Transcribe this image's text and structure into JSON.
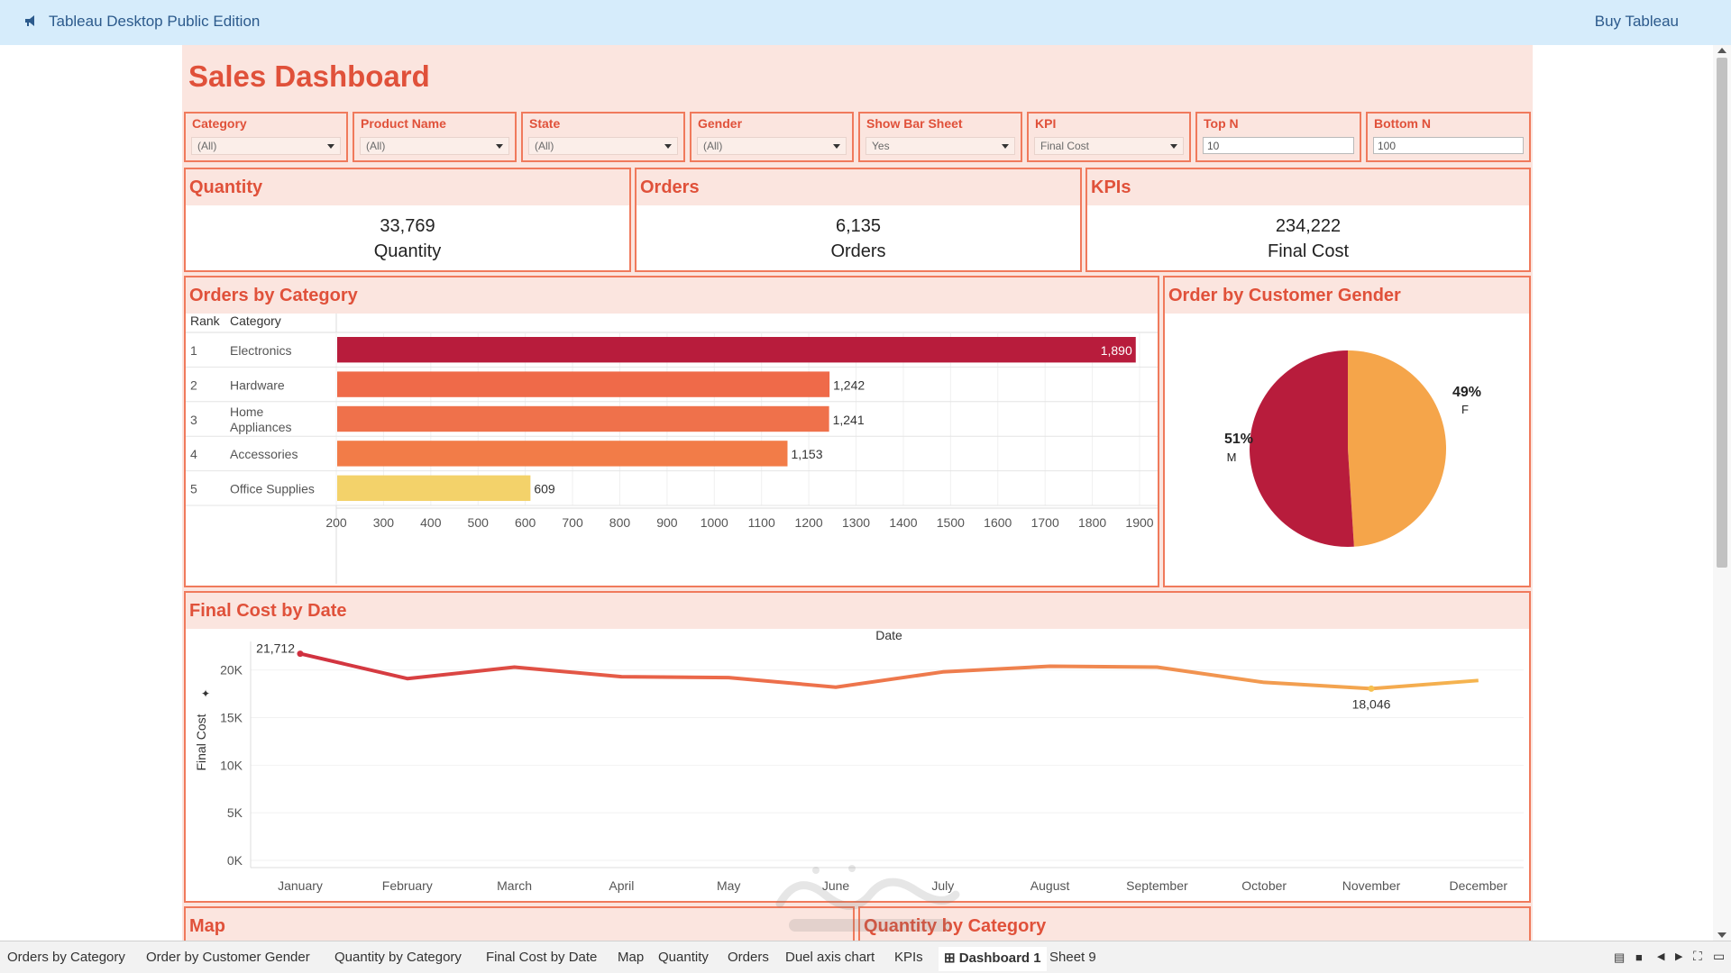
{
  "app": {
    "title": "Tableau Desktop Public Edition",
    "buy_label": "Buy Tableau"
  },
  "dashboard": {
    "title": "Sales Dashboard"
  },
  "filters": [
    {
      "label": "Category",
      "value": "(All)",
      "type": "dropdown"
    },
    {
      "label": "Product Name",
      "value": "(All)",
      "type": "dropdown"
    },
    {
      "label": "State",
      "value": "(All)",
      "type": "dropdown"
    },
    {
      "label": "Gender",
      "value": "(All)",
      "type": "dropdown"
    },
    {
      "label": "Show Bar Sheet",
      "value": "Yes",
      "type": "dropdown"
    },
    {
      "label": "KPI",
      "value": "Final Cost",
      "type": "dropdown"
    },
    {
      "label": "Top N",
      "value": "10",
      "type": "input"
    },
    {
      "label": "Bottom N",
      "value": "100",
      "type": "input"
    }
  ],
  "kpis": [
    {
      "header": "Quantity",
      "value": "33,769",
      "label": "Quantity"
    },
    {
      "header": "Orders",
      "value": "6,135",
      "label": "Orders"
    },
    {
      "header": "KPIs",
      "value": "234,222",
      "label": "Final Cost"
    }
  ],
  "sections": {
    "orders_by_category": "Orders by Category",
    "gender": "Order by Customer Gender",
    "final_cost": "Final Cost by Date",
    "map": "Map",
    "quantity_by_category": "Quantity by Category"
  },
  "orders_table": {
    "rank_header": "Rank",
    "category_header": "Category"
  },
  "colors": {
    "accent": "#e0513a",
    "border": "#f07a5c",
    "header_bg": "#fbe5df",
    "crimson": "#b81c3c",
    "orange": "#f0784a",
    "yellow": "#f3d26a",
    "light_orange": "#f5a54a"
  },
  "chart_data": [
    {
      "type": "bar",
      "title": "Orders by Category",
      "categories": [
        "Electronics",
        "Hardware",
        "Home Appliances",
        "Accessories",
        "Office Supplies"
      ],
      "ranks": [
        "1",
        "2",
        "3",
        "4",
        "5"
      ],
      "values": [
        1890,
        1242,
        1241,
        1153,
        609
      ],
      "value_labels": [
        "1,890",
        "1,242",
        "1,241",
        "1,153",
        "609"
      ],
      "xticks": [
        200,
        300,
        400,
        500,
        600,
        700,
        800,
        900,
        1000,
        1100,
        1200,
        1300,
        1400,
        1500,
        1600,
        1700,
        1800,
        1900
      ],
      "xlim": [
        200,
        1900
      ]
    },
    {
      "type": "pie",
      "title": "Order by Customer Gender",
      "categories": [
        "M",
        "F"
      ],
      "values": [
        51,
        49
      ],
      "value_labels": [
        "51%",
        "49%"
      ]
    },
    {
      "type": "line",
      "title": "Final Cost by Date",
      "xlabel": "Date",
      "ylabel": "Final Cost",
      "categories": [
        "January",
        "February",
        "March",
        "April",
        "May",
        "June",
        "July",
        "August",
        "September",
        "October",
        "November",
        "December"
      ],
      "values": [
        21712,
        19100,
        20300,
        19300,
        19200,
        18200,
        19800,
        20400,
        20300,
        18700,
        18046,
        18900
      ],
      "annotations": [
        {
          "category": "January",
          "label": "21,712"
        },
        {
          "category": "November",
          "label": "18,046"
        }
      ],
      "yticks": [
        0,
        5000,
        10000,
        15000,
        20000
      ],
      "ytick_labels": [
        "0K",
        "5K",
        "10K",
        "15K",
        "20K"
      ],
      "ylim": [
        0,
        23000
      ]
    }
  ],
  "tabs": [
    {
      "label": "Orders by Category"
    },
    {
      "label": "Order by Customer Gender"
    },
    {
      "label": "Quantity by Category"
    },
    {
      "label": "Final Cost by Date"
    },
    {
      "label": "Map"
    },
    {
      "label": "Quantity"
    },
    {
      "label": "Orders"
    },
    {
      "label": "Duel axis chart"
    },
    {
      "label": "KPIs"
    },
    {
      "label": "Dashboard 1",
      "active": true
    },
    {
      "label": "Sheet 9"
    }
  ]
}
